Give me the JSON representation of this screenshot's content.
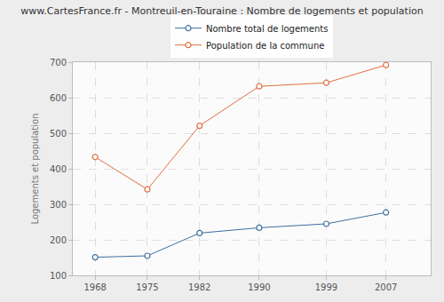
{
  "chart_data": {
    "type": "line",
    "title": "www.CartesFrance.fr - Montreuil-en-Touraine : Nombre de logements et population",
    "y_label": "Logements et population",
    "x": [
      1968,
      1975,
      1982,
      1990,
      1999,
      2007
    ],
    "series": [
      {
        "name": "Nombre total de logements",
        "color": "#3f6f9f",
        "marker": "circle",
        "values": [
          151,
          155,
          219,
          234,
          245,
          277
        ]
      },
      {
        "name": "Population de la commune",
        "color": "#e0703f",
        "marker": "circle",
        "values": [
          433,
          342,
          521,
          632,
          642,
          692
        ]
      }
    ],
    "xlim": [
      1965,
      2013
    ],
    "xticks": [
      1968,
      1975,
      1982,
      1990,
      1999,
      2007
    ],
    "ylim": [
      100,
      700
    ],
    "yticks": [
      100,
      200,
      300,
      400,
      500,
      600,
      700
    ],
    "grid": true,
    "legend": "top"
  }
}
